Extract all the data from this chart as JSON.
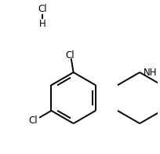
{
  "background_color": "#ffffff",
  "figsize": [
    2.04,
    1.96
  ],
  "dpi": 100,
  "bond_color": "#000000",
  "bond_lw": 1.4,
  "text_color": "#000000",
  "font_size": 9,
  "font_size_small": 8.5,
  "NH_label": "NH",
  "Cl_top_label": "Cl",
  "Cl_bot_label": "Cl",
  "HCl_Cl_label": "Cl",
  "HCl_H_label": "H"
}
